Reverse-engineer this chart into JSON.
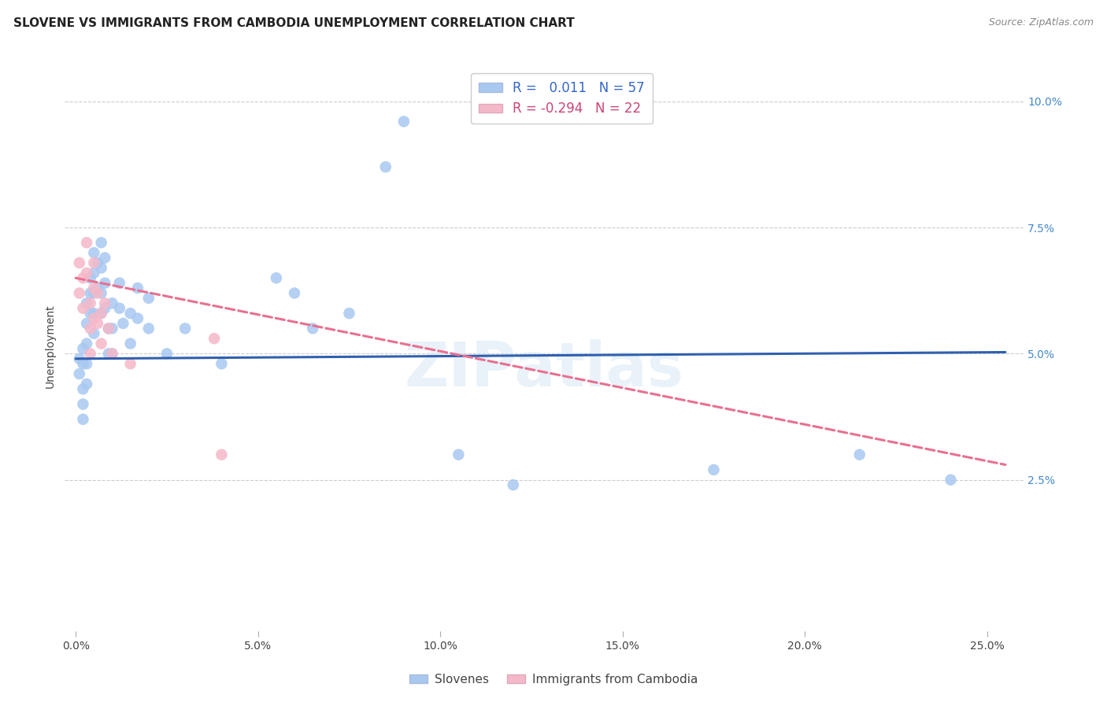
{
  "title": "SLOVENE VS IMMIGRANTS FROM CAMBODIA UNEMPLOYMENT CORRELATION CHART",
  "source": "Source: ZipAtlas.com",
  "ylabel": "Unemployment",
  "xlabel_ticks": [
    "0.0%",
    "5.0%",
    "10.0%",
    "15.0%",
    "20.0%",
    "25.0%"
  ],
  "xlabel_vals": [
    0.0,
    0.05,
    0.1,
    0.15,
    0.2,
    0.25
  ],
  "ylabel_ticks": [
    "2.5%",
    "5.0%",
    "7.5%",
    "10.0%"
  ],
  "ylabel_vals": [
    0.025,
    0.05,
    0.075,
    0.1
  ],
  "xlim": [
    -0.003,
    0.26
  ],
  "ylim": [
    -0.005,
    0.108
  ],
  "legend_r1": "R =   0.011",
  "legend_n1": "N = 57",
  "legend_r2": "R = -0.294",
  "legend_n2": "N = 22",
  "blue_color": "#a8c8f0",
  "pink_color": "#f5b8c8",
  "blue_line_color": "#3060b0",
  "pink_line_color": "#e87090",
  "watermark": "ZIPatlas",
  "slovene_x": [
    0.001,
    0.001,
    0.002,
    0.002,
    0.002,
    0.002,
    0.002,
    0.003,
    0.003,
    0.003,
    0.003,
    0.003,
    0.004,
    0.004,
    0.004,
    0.005,
    0.005,
    0.005,
    0.005,
    0.005,
    0.006,
    0.006,
    0.007,
    0.007,
    0.007,
    0.007,
    0.008,
    0.008,
    0.008,
    0.009,
    0.009,
    0.01,
    0.01,
    0.01,
    0.012,
    0.012,
    0.013,
    0.015,
    0.015,
    0.017,
    0.017,
    0.02,
    0.02,
    0.025,
    0.03,
    0.04,
    0.055,
    0.06,
    0.065,
    0.075,
    0.085,
    0.09,
    0.105,
    0.12,
    0.175,
    0.215,
    0.24
  ],
  "slovene_y": [
    0.049,
    0.046,
    0.051,
    0.048,
    0.043,
    0.04,
    0.037,
    0.06,
    0.056,
    0.052,
    0.048,
    0.044,
    0.065,
    0.062,
    0.058,
    0.07,
    0.066,
    0.062,
    0.058,
    0.054,
    0.068,
    0.063,
    0.072,
    0.067,
    0.062,
    0.058,
    0.069,
    0.064,
    0.059,
    0.055,
    0.05,
    0.06,
    0.055,
    0.05,
    0.064,
    0.059,
    0.056,
    0.058,
    0.052,
    0.063,
    0.057,
    0.061,
    0.055,
    0.05,
    0.055,
    0.048,
    0.065,
    0.062,
    0.055,
    0.058,
    0.087,
    0.096,
    0.03,
    0.024,
    0.027,
    0.03,
    0.025
  ],
  "camb_x": [
    0.001,
    0.001,
    0.002,
    0.002,
    0.003,
    0.003,
    0.004,
    0.004,
    0.004,
    0.005,
    0.005,
    0.005,
    0.006,
    0.006,
    0.007,
    0.007,
    0.008,
    0.009,
    0.01,
    0.015,
    0.038,
    0.04
  ],
  "camb_y": [
    0.068,
    0.062,
    0.065,
    0.059,
    0.072,
    0.066,
    0.06,
    0.055,
    0.05,
    0.068,
    0.063,
    0.057,
    0.062,
    0.056,
    0.058,
    0.052,
    0.06,
    0.055,
    0.05,
    0.048,
    0.053,
    0.03
  ],
  "blue_trend_x": [
    0.0,
    0.255
  ],
  "blue_trend_y": [
    0.049,
    0.0503
  ],
  "pink_trend_x": [
    0.0,
    0.255
  ],
  "pink_trend_y": [
    0.065,
    0.028
  ],
  "background_color": "#ffffff",
  "grid_color": "#cccccc",
  "title_fontsize": 11,
  "source_fontsize": 9,
  "axis_tick_fontsize": 10,
  "ylabel_fontsize": 10
}
